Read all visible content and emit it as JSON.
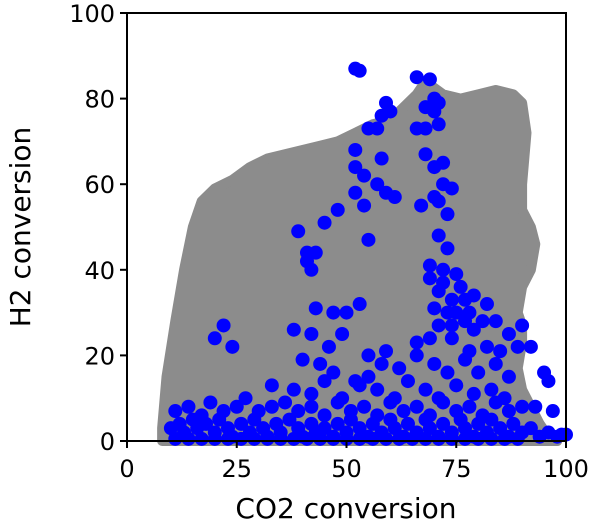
{
  "chart_data": {
    "type": "scatter",
    "xlabel": "CO2 conversion",
    "ylabel": "H2 conversion",
    "xlim": [
      0,
      100
    ],
    "ylim": [
      0,
      100
    ],
    "xticks": [
      "0",
      "25",
      "50",
      "75",
      "100"
    ],
    "yticks": [
      "0",
      "20",
      "40",
      "60",
      "80",
      "100"
    ],
    "grid": false,
    "colors": {
      "region": "#8c8c8c",
      "points": "#0000ff"
    },
    "feasible_region": [
      [
        8,
        0
      ],
      [
        8,
        3
      ],
      [
        9,
        15
      ],
      [
        11,
        28
      ],
      [
        13,
        40
      ],
      [
        15,
        50
      ],
      [
        17,
        56
      ],
      [
        20,
        59
      ],
      [
        24,
        61
      ],
      [
        28,
        64
      ],
      [
        32,
        66
      ],
      [
        36,
        67
      ],
      [
        40,
        68
      ],
      [
        44,
        69
      ],
      [
        48,
        70
      ],
      [
        52,
        72
      ],
      [
        56,
        74
      ],
      [
        60,
        75
      ],
      [
        63,
        78
      ],
      [
        66,
        81
      ],
      [
        68,
        84
      ],
      [
        72,
        81
      ],
      [
        76,
        80
      ],
      [
        80,
        81
      ],
      [
        84,
        82
      ],
      [
        88,
        81
      ],
      [
        90,
        79
      ],
      [
        91,
        72
      ],
      [
        90,
        60
      ],
      [
        90,
        54
      ],
      [
        92,
        50
      ],
      [
        93,
        46
      ],
      [
        92,
        40
      ],
      [
        90,
        36
      ],
      [
        89,
        30
      ],
      [
        90,
        27
      ],
      [
        90,
        23
      ],
      [
        89,
        17
      ],
      [
        90,
        12
      ],
      [
        92,
        8
      ],
      [
        94,
        4
      ],
      [
        96,
        1
      ],
      [
        98,
        0
      ]
    ],
    "points": [
      [
        52,
        87
      ],
      [
        53,
        86.5
      ],
      [
        66,
        85
      ],
      [
        69,
        84.5
      ],
      [
        70,
        80
      ],
      [
        71,
        79
      ],
      [
        70,
        77
      ],
      [
        68,
        78
      ],
      [
        60,
        77
      ],
      [
        59,
        79
      ],
      [
        58,
        76
      ],
      [
        55,
        73
      ],
      [
        57,
        73
      ],
      [
        68,
        73
      ],
      [
        71,
        74
      ],
      [
        66,
        73
      ],
      [
        52,
        68
      ],
      [
        52,
        64
      ],
      [
        58,
        66
      ],
      [
        68,
        67
      ],
      [
        70,
        64
      ],
      [
        72,
        65
      ],
      [
        54,
        62
      ],
      [
        57,
        60
      ],
      [
        59,
        58
      ],
      [
        61,
        57
      ],
      [
        72,
        60
      ],
      [
        74,
        59
      ],
      [
        70,
        57
      ],
      [
        52,
        58
      ],
      [
        54,
        55
      ],
      [
        67,
        55
      ],
      [
        71,
        56
      ],
      [
        73,
        53
      ],
      [
        48,
        54
      ],
      [
        45,
        51
      ],
      [
        55,
        47
      ],
      [
        71,
        48
      ],
      [
        73,
        45
      ],
      [
        39,
        49
      ],
      [
        41,
        44
      ],
      [
        43,
        44
      ],
      [
        41,
        42
      ],
      [
        42,
        40
      ],
      [
        69,
        41
      ],
      [
        72,
        40
      ],
      [
        69,
        38
      ],
      [
        72,
        37
      ],
      [
        75,
        39
      ],
      [
        76,
        36
      ],
      [
        71,
        35
      ],
      [
        74,
        33
      ],
      [
        77,
        33
      ],
      [
        79,
        34
      ],
      [
        70,
        31
      ],
      [
        73,
        30
      ],
      [
        75,
        30
      ],
      [
        78,
        30
      ],
      [
        81,
        28
      ],
      [
        82,
        32
      ],
      [
        71,
        27
      ],
      [
        74,
        27
      ],
      [
        77,
        28
      ],
      [
        79,
        26
      ],
      [
        84,
        28
      ],
      [
        87,
        25
      ],
      [
        90,
        27
      ],
      [
        43,
        31
      ],
      [
        47,
        30
      ],
      [
        50,
        30
      ],
      [
        53,
        32
      ],
      [
        38,
        26
      ],
      [
        42,
        25
      ],
      [
        22,
        27
      ],
      [
        20,
        24
      ],
      [
        24,
        22
      ],
      [
        46,
        22
      ],
      [
        49,
        25
      ],
      [
        55,
        20
      ],
      [
        59,
        21
      ],
      [
        66,
        23
      ],
      [
        69,
        24
      ],
      [
        74,
        24
      ],
      [
        78,
        21
      ],
      [
        82,
        22
      ],
      [
        85,
        21
      ],
      [
        89,
        22
      ],
      [
        92,
        22
      ],
      [
        40,
        19
      ],
      [
        44,
        18
      ],
      [
        47,
        16
      ],
      [
        52,
        14
      ],
      [
        55,
        15
      ],
      [
        58,
        18
      ],
      [
        62,
        17
      ],
      [
        66,
        20
      ],
      [
        70,
        18
      ],
      [
        73,
        16
      ],
      [
        77,
        19
      ],
      [
        80,
        16
      ],
      [
        84,
        18
      ],
      [
        87,
        15
      ],
      [
        95,
        16
      ],
      [
        33,
        13
      ],
      [
        38,
        12
      ],
      [
        42,
        11
      ],
      [
        45,
        14
      ],
      [
        49,
        10
      ],
      [
        53,
        13
      ],
      [
        57,
        12
      ],
      [
        61,
        10
      ],
      [
        64,
        14
      ],
      [
        68,
        12
      ],
      [
        71,
        10
      ],
      [
        75,
        13
      ],
      [
        79,
        11
      ],
      [
        83,
        12
      ],
      [
        86,
        10
      ],
      [
        96,
        14
      ],
      [
        11,
        7
      ],
      [
        14,
        8
      ],
      [
        17,
        6
      ],
      [
        19,
        9
      ],
      [
        22,
        7
      ],
      [
        25,
        8
      ],
      [
        27,
        10
      ],
      [
        30,
        7
      ],
      [
        33,
        8
      ],
      [
        36,
        9
      ],
      [
        39,
        7
      ],
      [
        42,
        8
      ],
      [
        45,
        6
      ],
      [
        48,
        9
      ],
      [
        51,
        7
      ],
      [
        54,
        8
      ],
      [
        57,
        6
      ],
      [
        60,
        9
      ],
      [
        63,
        7
      ],
      [
        66,
        8
      ],
      [
        69,
        6
      ],
      [
        72,
        9
      ],
      [
        75,
        7
      ],
      [
        78,
        8
      ],
      [
        81,
        6
      ],
      [
        84,
        9
      ],
      [
        87,
        7
      ],
      [
        90,
        8
      ],
      [
        93,
        8
      ],
      [
        97,
        7
      ],
      [
        10,
        3
      ],
      [
        12,
        4
      ],
      [
        13,
        2
      ],
      [
        15,
        5
      ],
      [
        16,
        3
      ],
      [
        18,
        4
      ],
      [
        20,
        2
      ],
      [
        21,
        5
      ],
      [
        23,
        3
      ],
      [
        24,
        1
      ],
      [
        26,
        4
      ],
      [
        28,
        2
      ],
      [
        29,
        5
      ],
      [
        31,
        3
      ],
      [
        32,
        1
      ],
      [
        34,
        4
      ],
      [
        35,
        2
      ],
      [
        37,
        5
      ],
      [
        39,
        3
      ],
      [
        40,
        1
      ],
      [
        42,
        4
      ],
      [
        43,
        2
      ],
      [
        45,
        3
      ],
      [
        47,
        1
      ],
      [
        48,
        4
      ],
      [
        50,
        2
      ],
      [
        51,
        5
      ],
      [
        53,
        3
      ],
      [
        55,
        1
      ],
      [
        56,
        4
      ],
      [
        58,
        2
      ],
      [
        60,
        5
      ],
      [
        61,
        3
      ],
      [
        63,
        1
      ],
      [
        64,
        4
      ],
      [
        66,
        2
      ],
      [
        68,
        5
      ],
      [
        69,
        3
      ],
      [
        71,
        1
      ],
      [
        72,
        4
      ],
      [
        74,
        2
      ],
      [
        76,
        5
      ],
      [
        77,
        3
      ],
      [
        79,
        1
      ],
      [
        80,
        4
      ],
      [
        82,
        2
      ],
      [
        83,
        5
      ],
      [
        85,
        3
      ],
      [
        87,
        1
      ],
      [
        88,
        4
      ],
      [
        90,
        2
      ],
      [
        92,
        3
      ],
      [
        94,
        1
      ],
      [
        96,
        2
      ],
      [
        98,
        1
      ],
      [
        99,
        1.5
      ],
      [
        100,
        1.5
      ],
      [
        11,
        0.5
      ],
      [
        14,
        0.5
      ],
      [
        17,
        0.5
      ],
      [
        20,
        0.5
      ],
      [
        23,
        0.5
      ],
      [
        26,
        0.5
      ],
      [
        29,
        0.5
      ],
      [
        32,
        0.5
      ],
      [
        35,
        0.5
      ],
      [
        38,
        0.5
      ],
      [
        41,
        0.5
      ],
      [
        44,
        0.5
      ],
      [
        47,
        0.5
      ],
      [
        50,
        0.5
      ],
      [
        53,
        0.5
      ],
      [
        56,
        0.5
      ],
      [
        59,
        0.5
      ],
      [
        62,
        0.5
      ],
      [
        65,
        0.5
      ],
      [
        68,
        0.5
      ],
      [
        71,
        0.5
      ],
      [
        74,
        0.5
      ],
      [
        77,
        0.5
      ],
      [
        80,
        0.5
      ],
      [
        83,
        0.5
      ],
      [
        86,
        0.5
      ],
      [
        89,
        0.5
      ]
    ]
  }
}
